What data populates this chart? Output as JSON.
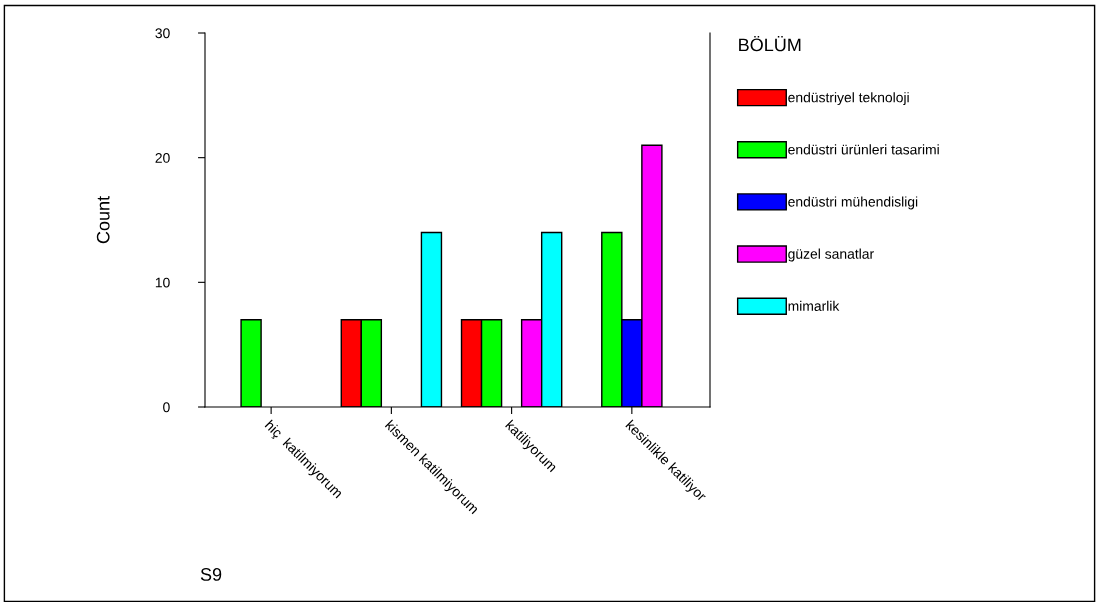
{
  "chart_data": {
    "type": "bar",
    "xlabel": "S9",
    "ylabel": "Count",
    "legend_title": "BÖLÜM",
    "categories": [
      "hiç  katilmiyorum",
      "kismen katilmiyorum",
      "katiliyorum",
      "kesinlikle katiliyor"
    ],
    "series": [
      {
        "name": "endüstriyel teknoloji",
        "color": "#ff0000",
        "values": [
          null,
          7,
          7,
          null
        ]
      },
      {
        "name": "endüstri ürünleri tasarimi",
        "color": "#00ff00",
        "values": [
          7,
          7,
          7,
          14
        ]
      },
      {
        "name": "endüstri mühendisligi",
        "color": "#0000ff",
        "values": [
          null,
          null,
          null,
          7
        ]
      },
      {
        "name": "güzel sanatlar",
        "color": "#ff00ff",
        "values": [
          null,
          null,
          7,
          21
        ]
      },
      {
        "name": "mimarlik",
        "color": "#00ffff",
        "values": [
          null,
          14,
          14,
          null
        ]
      }
    ],
    "ylim": [
      0,
      30
    ],
    "yticks": [
      0,
      10,
      20,
      30
    ],
    "grid": false,
    "legend": "right"
  }
}
